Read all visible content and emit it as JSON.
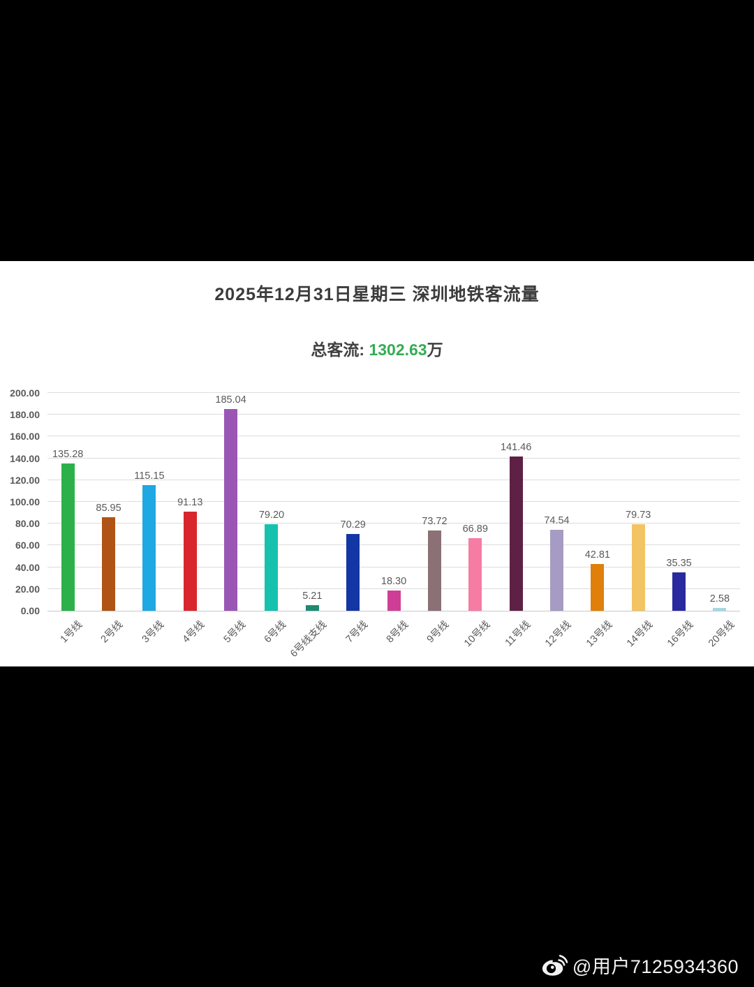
{
  "page": {
    "title": "2025年12月31日星期三  深圳地铁客流量",
    "subtitle_label": "总客流: ",
    "subtitle_value": "1302.63",
    "subtitle_unit": "万",
    "accent_green": "#33ad54"
  },
  "watermark": {
    "icon": "weibo-icon",
    "text": "@用户7125934360"
  },
  "chart_data": {
    "type": "bar",
    "title": "2025年12月31日星期三  深圳地铁客流量",
    "subtitle": "总客流: 1302.63万",
    "total": 1302.63,
    "categories": [
      "1号线",
      "2号线",
      "3号线",
      "4号线",
      "5号线",
      "6号线",
      "6号线支线",
      "7号线",
      "8号线",
      "9号线",
      "10号线",
      "11号线",
      "12号线",
      "13号线",
      "14号线",
      "16号线",
      "20号线"
    ],
    "values": [
      135.28,
      85.95,
      115.15,
      91.13,
      185.04,
      79.2,
      5.21,
      70.29,
      18.3,
      73.72,
      66.89,
      141.46,
      74.54,
      42.81,
      79.73,
      35.35,
      2.58
    ],
    "colors": [
      "#2cb14a",
      "#b05316",
      "#1fa8e4",
      "#d8262c",
      "#9a56b5",
      "#16c2ad",
      "#1d8a74",
      "#1236a4",
      "#cf3e96",
      "#8b7076",
      "#f57ca2",
      "#5f2046",
      "#a69bc2",
      "#e07f0a",
      "#f2c463",
      "#2a2aa0",
      "#a3d8e2"
    ],
    "xlabel": "",
    "ylabel": "",
    "ylim": [
      0,
      200
    ],
    "ytick_step": 20,
    "ytick_format_decimals": 2,
    "grid": true,
    "legend": false,
    "value_labels": true,
    "grid_color": "#dcdcdc",
    "label_color": "#595959"
  }
}
